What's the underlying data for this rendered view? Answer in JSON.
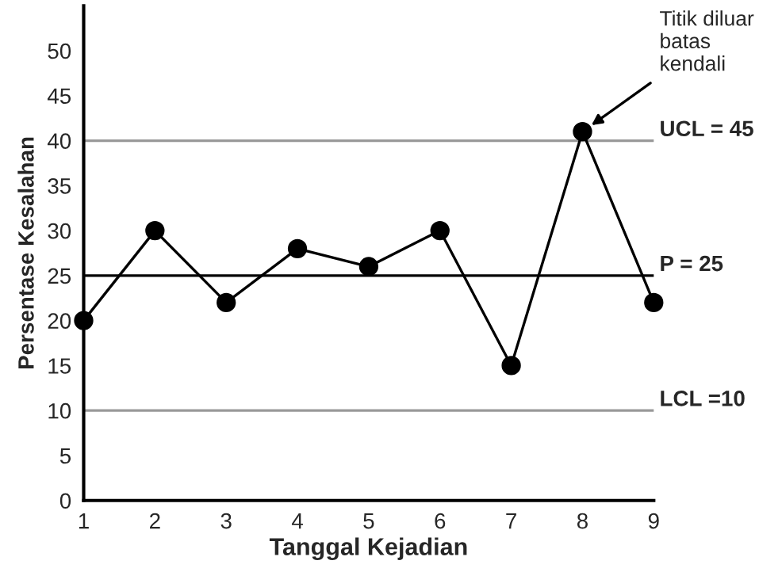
{
  "chart_data": {
    "type": "line",
    "xlabel": "Tanggal Kejadian",
    "ylabel": "Persentase Kesalahan",
    "x": [
      1,
      2,
      3,
      4,
      5,
      6,
      7,
      8,
      9
    ],
    "series": [
      {
        "color": "#000000",
        "values": [
          20,
          30,
          22,
          28,
          26,
          30,
          15,
          41,
          22
        ]
      }
    ],
    "marker": "circle",
    "line_style": "solid",
    "grid": false,
    "legend": false,
    "xlim": [
      1,
      9
    ],
    "xticks": [
      1,
      2,
      3,
      4,
      5,
      6,
      7,
      8,
      9
    ],
    "ylim": [
      0,
      55
    ],
    "yticks": [
      0,
      5,
      10,
      15,
      20,
      25,
      30,
      35,
      40,
      45,
      50
    ],
    "ref_lines": [
      {
        "axis": "y",
        "value": 40,
        "color": "#999999"
      },
      {
        "axis": "y",
        "value": 25,
        "label": "P = 25",
        "color": "#000000"
      },
      {
        "axis": "y",
        "value": 10,
        "label": "LCL =10",
        "color": "#999999"
      }
    ],
    "annotations": [
      {
        "text": "Titik diluar\nbatas\nkendali",
        "x": 8,
        "y": 41
      },
      "UCL = 45"
    ]
  }
}
